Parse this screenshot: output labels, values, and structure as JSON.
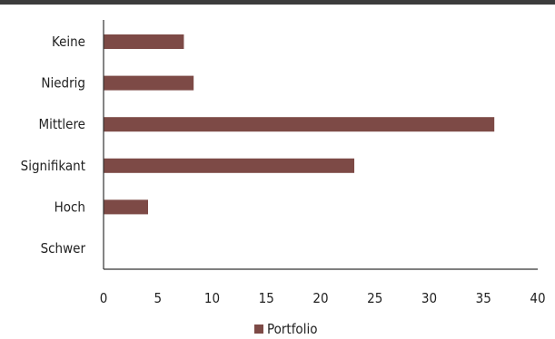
{
  "chart_data": {
    "type": "bar",
    "orientation": "horizontal",
    "categories": [
      "Keine",
      "Niedrig",
      "Mittlere",
      "Signifikant",
      "Hoch",
      "Schwer"
    ],
    "series": [
      {
        "name": "Portfolio",
        "values": [
          7.4,
          8.3,
          36.0,
          23.1,
          4.1,
          0
        ],
        "color": "#7d4a46"
      }
    ],
    "xlim": [
      0,
      40
    ],
    "xticks": [
      0,
      5,
      10,
      15,
      20,
      25,
      30,
      35,
      40
    ],
    "grid": false,
    "legend_position": "bottom"
  }
}
